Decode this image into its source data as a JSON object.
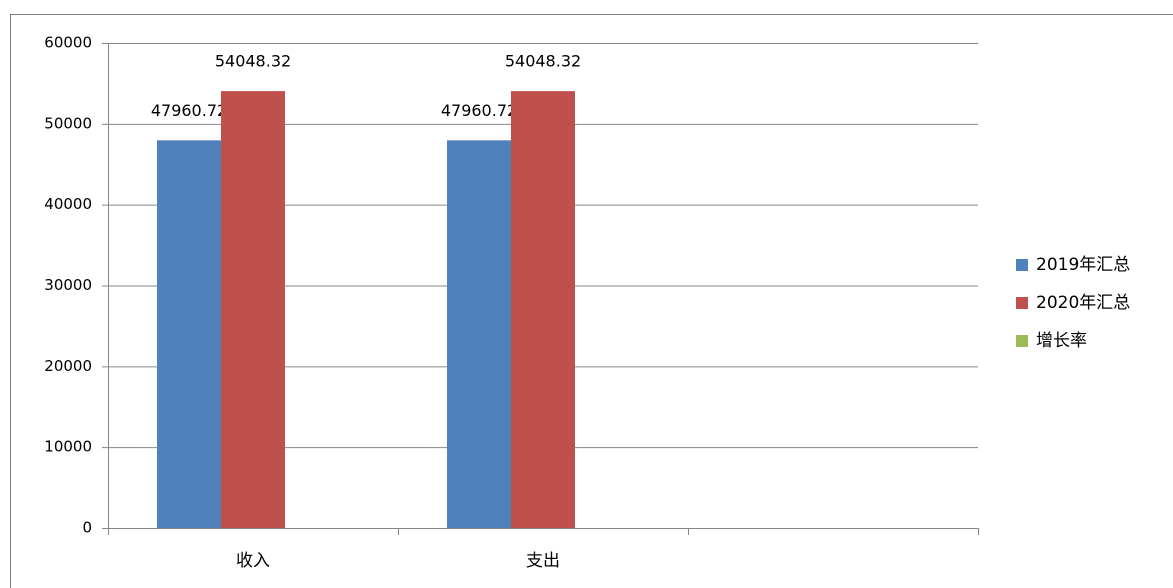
{
  "chart_data": {
    "type": "bar",
    "categories": [
      "收入",
      "支出",
      null
    ],
    "series": [
      {
        "name": "2019年汇总",
        "color": "#4f81bd",
        "values": [
          47960.72,
          47960.72,
          null
        ]
      },
      {
        "name": "2020年汇总",
        "color": "#c0504d",
        "values": [
          54048.32,
          54048.32,
          null
        ]
      },
      {
        "name": "增长率",
        "color": "#9bbb59",
        "values": [
          null,
          null,
          null
        ]
      }
    ],
    "ylim": [
      0,
      60000
    ],
    "yticks": [
      0,
      10000,
      20000,
      30000,
      40000,
      50000,
      60000
    ],
    "grid": true,
    "legend": "right",
    "data_labels": true
  }
}
